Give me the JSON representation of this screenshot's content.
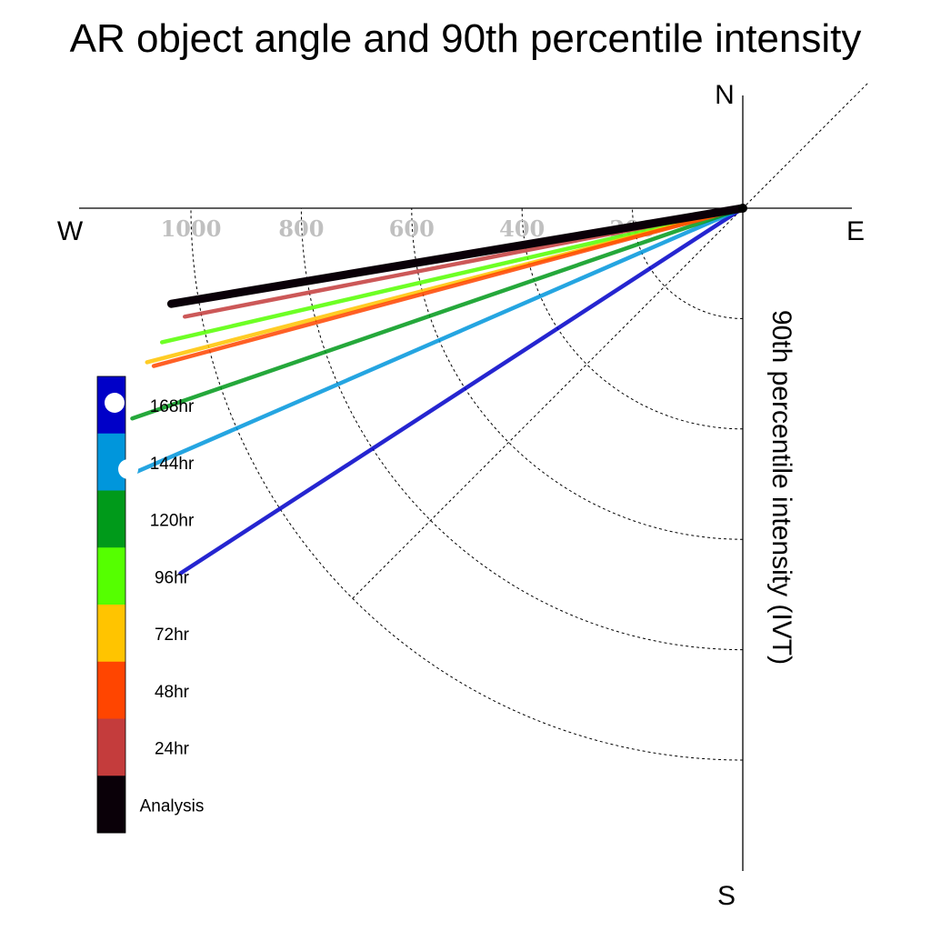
{
  "chart_data": {
    "type": "polar-vector",
    "title": "AR object angle and 90th percentile intensity",
    "ylabel": "90th percentile intensity (IVT)",
    "compass": {
      "north": "N",
      "south": "S",
      "east": "E",
      "west": "W"
    },
    "rlim": [
      0,
      1200
    ],
    "rings": [
      200,
      400,
      600,
      800,
      1000
    ],
    "tick_labels": [
      "200",
      "400",
      "600",
      "800",
      "1000"
    ],
    "grid": true,
    "legend_position": "bottom-left",
    "series": [
      {
        "name": "Analysis",
        "color": "#0a0008",
        "angle": 260.5,
        "intensity": 1050
      },
      {
        "name": "24hr",
        "color": "#c43c3c",
        "angle": 259.0,
        "intensity": 1030
      },
      {
        "name": "48hr",
        "color": "#ff4500",
        "angle": 255.0,
        "intensity": 1105
      },
      {
        "name": "72hr",
        "color": "#ffc400",
        "angle": 255.5,
        "intensity": 1115
      },
      {
        "name": "96hr",
        "color": "#55ff00",
        "angle": 257.0,
        "intensity": 1080
      },
      {
        "name": "120hr",
        "color": "#009a1a",
        "angle": 251.0,
        "intensity": 1170
      },
      {
        "name": "144hr",
        "color": "#0096dc",
        "angle": 246.5,
        "intensity": 1210
      },
      {
        "name": "168hr",
        "color": "#0000c8",
        "angle": 237.0,
        "intensity": 1215
      }
    ],
    "legend_order": [
      "168hr",
      "144hr",
      "120hr",
      "96hr",
      "72hr",
      "48hr",
      "24hr",
      "Analysis"
    ]
  }
}
